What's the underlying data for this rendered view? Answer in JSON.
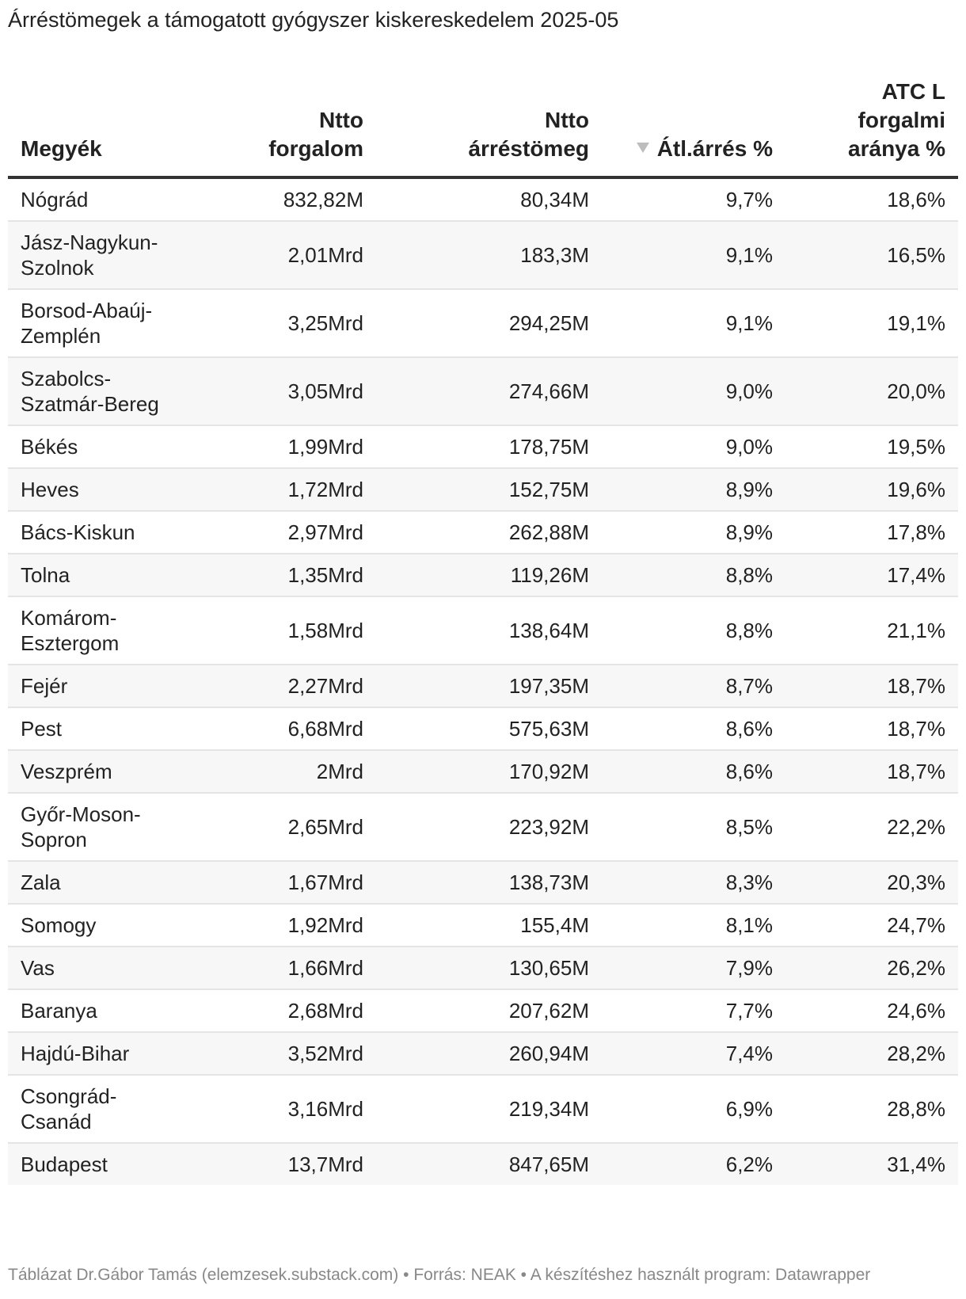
{
  "title": "Árréstömegek a támogatott gyógyszer kiskereskedelem 2025-05",
  "table": {
    "columns": [
      {
        "label": "Megyék",
        "align": "left"
      },
      {
        "label": "Ntto forgalom",
        "align": "right"
      },
      {
        "label": "Ntto árréstömeg",
        "align": "right"
      },
      {
        "label": "Átl.árrés %",
        "align": "right",
        "sorted": "descending",
        "sort_icon": "sort-desc-icon"
      },
      {
        "label": "ATC L forgalmi aránya %",
        "align": "right"
      }
    ],
    "rows": [
      {
        "megye": "Nógrád",
        "forgalom": "832,82M",
        "arrestomeg": "80,34M",
        "atl_arres": "9,7%",
        "atc_l": "18,6%"
      },
      {
        "megye": "Jász-Nagykun-Szolnok",
        "forgalom": "2,01Mrd",
        "arrestomeg": "183,3M",
        "atl_arres": "9,1%",
        "atc_l": "16,5%"
      },
      {
        "megye": "Borsod-Abaúj-Zemplén",
        "forgalom": "3,25Mrd",
        "arrestomeg": "294,25M",
        "atl_arres": "9,1%",
        "atc_l": "19,1%"
      },
      {
        "megye": "Szabolcs-Szatmár-Bereg",
        "forgalom": "3,05Mrd",
        "arrestomeg": "274,66M",
        "atl_arres": "9,0%",
        "atc_l": "20,0%"
      },
      {
        "megye": "Békés",
        "forgalom": "1,99Mrd",
        "arrestomeg": "178,75M",
        "atl_arres": "9,0%",
        "atc_l": "19,5%"
      },
      {
        "megye": "Heves",
        "forgalom": "1,72Mrd",
        "arrestomeg": "152,75M",
        "atl_arres": "8,9%",
        "atc_l": "19,6%"
      },
      {
        "megye": "Bács-Kiskun",
        "forgalom": "2,97Mrd",
        "arrestomeg": "262,88M",
        "atl_arres": "8,9%",
        "atc_l": "17,8%"
      },
      {
        "megye": "Tolna",
        "forgalom": "1,35Mrd",
        "arrestomeg": "119,26M",
        "atl_arres": "8,8%",
        "atc_l": "17,4%"
      },
      {
        "megye": "Komárom-Esztergom",
        "forgalom": "1,58Mrd",
        "arrestomeg": "138,64M",
        "atl_arres": "8,8%",
        "atc_l": "21,1%"
      },
      {
        "megye": "Fejér",
        "forgalom": "2,27Mrd",
        "arrestomeg": "197,35M",
        "atl_arres": "8,7%",
        "atc_l": "18,7%"
      },
      {
        "megye": "Pest",
        "forgalom": "6,68Mrd",
        "arrestomeg": "575,63M",
        "atl_arres": "8,6%",
        "atc_l": "18,7%"
      },
      {
        "megye": "Veszprém",
        "forgalom": "2Mrd",
        "arrestomeg": "170,92M",
        "atl_arres": "8,6%",
        "atc_l": "18,7%"
      },
      {
        "megye": "Győr-Moson-Sopron",
        "forgalom": "2,65Mrd",
        "arrestomeg": "223,92M",
        "atl_arres": "8,5%",
        "atc_l": "22,2%"
      },
      {
        "megye": "Zala",
        "forgalom": "1,67Mrd",
        "arrestomeg": "138,73M",
        "atl_arres": "8,3%",
        "atc_l": "20,3%"
      },
      {
        "megye": "Somogy",
        "forgalom": "1,92Mrd",
        "arrestomeg": "155,4M",
        "atl_arres": "8,1%",
        "atc_l": "24,7%"
      },
      {
        "megye": "Vas",
        "forgalom": "1,66Mrd",
        "arrestomeg": "130,65M",
        "atl_arres": "7,9%",
        "atc_l": "26,2%"
      },
      {
        "megye": "Baranya",
        "forgalom": "2,68Mrd",
        "arrestomeg": "207,62M",
        "atl_arres": "7,7%",
        "atc_l": "24,6%"
      },
      {
        "megye": "Hajdú-Bihar",
        "forgalom": "3,52Mrd",
        "arrestomeg": "260,94M",
        "atl_arres": "7,4%",
        "atc_l": "28,2%"
      },
      {
        "megye": "Csongrád-Csanád",
        "forgalom": "3,16Mrd",
        "arrestomeg": "219,34M",
        "atl_arres": "6,9%",
        "atc_l": "28,8%"
      },
      {
        "megye": "Budapest",
        "forgalom": "13,7Mrd",
        "arrestomeg": "847,65M",
        "atl_arres": "6,2%",
        "atc_l": "31,4%"
      }
    ]
  },
  "footer": "Táblázat Dr.Gábor Tamás (elemzesek.substack.com) • Forrás: NEAK • A készítéshez használt program: Datawrapper"
}
